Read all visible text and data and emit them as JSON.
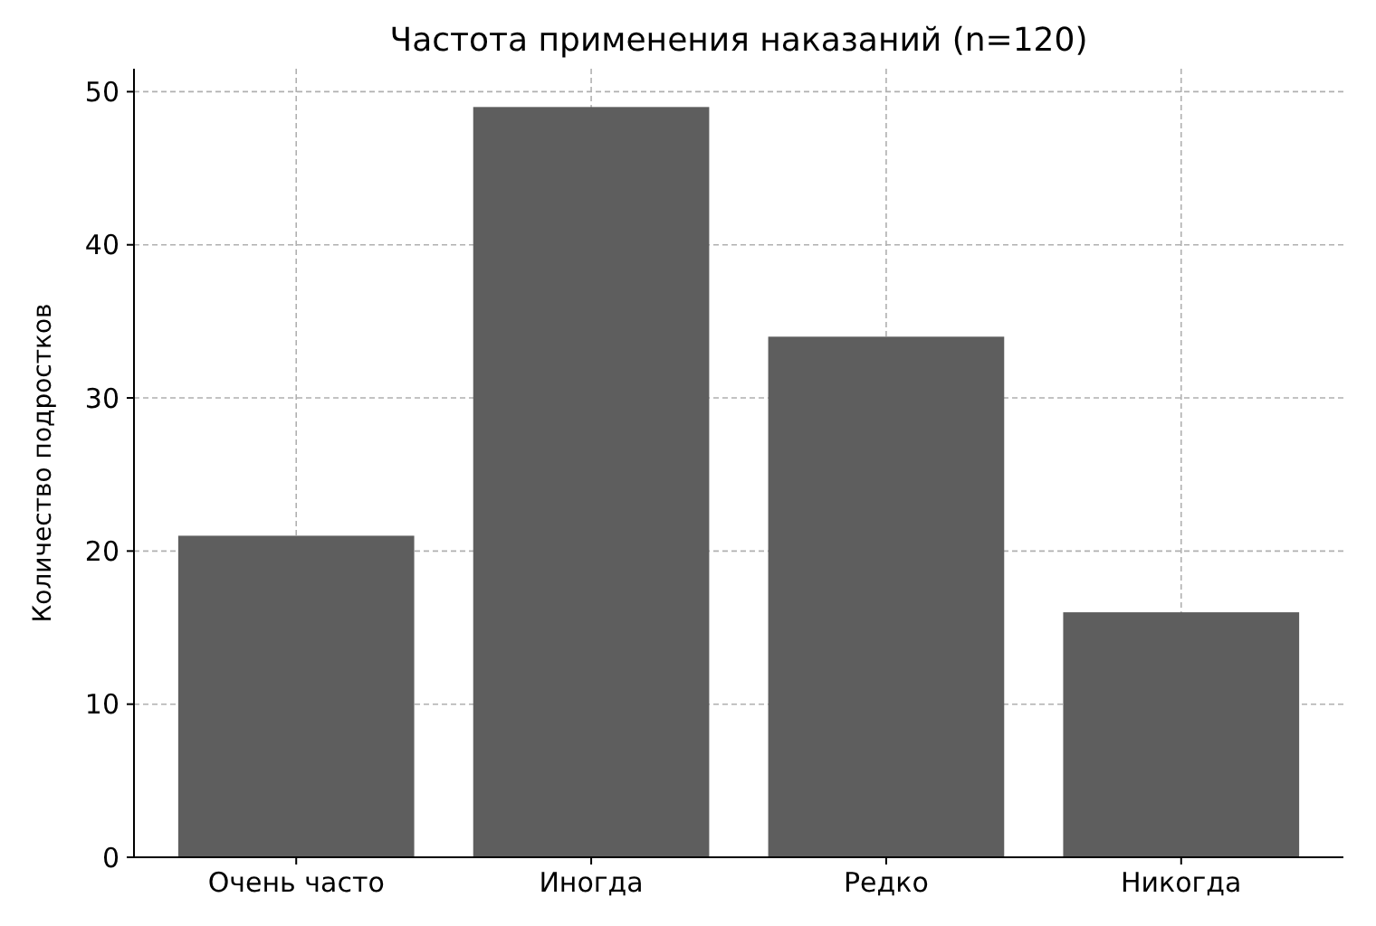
{
  "chart_data": {
    "type": "bar",
    "title": "Частота применения наказаний (n=120)",
    "ylabel": "Количество подростков",
    "categories": [
      "Очень часто",
      "Иногда",
      "Редко",
      "Никогда"
    ],
    "values": [
      21,
      49,
      34,
      16
    ],
    "color": "#5e5e5e",
    "ylim": [
      0,
      51.5
    ],
    "yticks": [
      0,
      10,
      20,
      30,
      40,
      50
    ],
    "grid": true
  }
}
